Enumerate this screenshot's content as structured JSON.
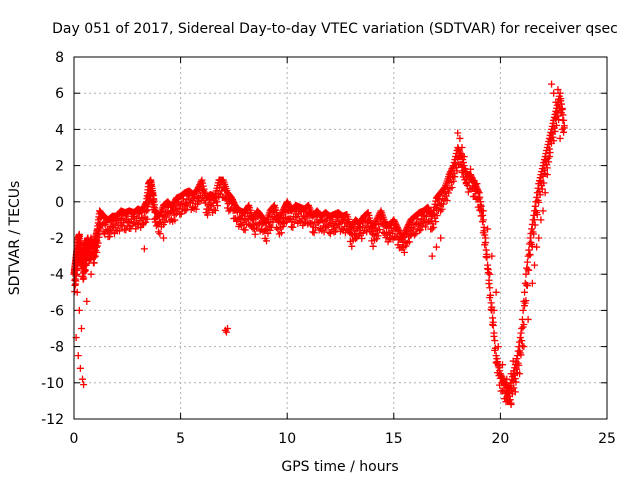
{
  "chart_data": {
    "type": "scatter",
    "title": "Day 051 of 2017, Sidereal Day-to-day VTEC variation (SDTVAR) for receiver qsec",
    "xlabel": "GPS time / hours",
    "ylabel": "SDTVAR / TECUs",
    "xlim": [
      0,
      25
    ],
    "ylim": [
      -12,
      8
    ],
    "xticks": [
      0,
      5,
      10,
      15,
      20,
      25
    ],
    "yticks": [
      -12,
      -10,
      -8,
      -6,
      -4,
      -2,
      0,
      2,
      4,
      6,
      8
    ],
    "xtick_labels": [
      "0",
      "5",
      "10",
      "15",
      "20",
      "25"
    ],
    "ytick_labels": [
      "-12",
      "-10",
      "-8",
      "-6",
      "-4",
      "-2",
      "0",
      "2",
      "4",
      "6",
      "8"
    ],
    "grid": true,
    "marker": "+",
    "series": [
      {
        "name": "SDTVAR",
        "color": "#ff0000",
        "x": [
          0.0,
          0.05,
          0.1,
          0.15,
          0.2,
          0.25,
          0.3,
          0.35,
          0.4,
          0.45,
          0.5,
          0.55,
          0.6,
          0.65,
          0.7,
          0.8,
          0.9,
          1.0,
          1.1,
          1.2,
          1.4,
          1.6,
          1.8,
          2.0,
          2.2,
          2.4,
          2.6,
          2.8,
          3.0,
          3.2,
          3.4,
          3.5,
          3.6,
          3.7,
          3.8,
          4.0,
          4.2,
          4.4,
          4.6,
          4.8,
          5.0,
          5.2,
          5.4,
          5.6,
          5.8,
          6.0,
          6.2,
          6.4,
          6.6,
          6.8,
          7.0,
          7.2,
          7.4,
          7.6,
          7.8,
          8.0,
          8.2,
          8.4,
          8.6,
          8.8,
          9.0,
          9.2,
          9.4,
          9.6,
          9.8,
          10.0,
          10.2,
          10.4,
          10.6,
          10.8,
          11.0,
          11.2,
          11.4,
          11.6,
          11.8,
          12.0,
          12.2,
          12.4,
          12.6,
          12.8,
          13.0,
          13.2,
          13.4,
          13.6,
          13.8,
          14.0,
          14.2,
          14.4,
          14.6,
          14.8,
          15.0,
          15.2,
          15.4,
          15.6,
          15.8,
          16.0,
          16.2,
          16.4,
          16.6,
          16.8,
          17.0,
          17.2,
          17.4,
          17.6,
          17.8,
          18.0,
          18.2,
          18.4,
          18.6,
          18.8,
          19.0,
          19.2,
          19.4,
          19.6,
          19.8,
          20.0,
          20.2,
          20.4,
          20.6,
          20.8,
          21.0,
          21.2,
          21.4,
          21.6,
          21.8,
          22.0,
          22.2,
          22.4,
          22.6,
          22.8,
          23.0
        ],
        "y": [
          -4.0,
          -3.5,
          -3.0,
          -2.5,
          -2.0,
          -1.8,
          -2.5,
          -3.0,
          -3.5,
          -3.0,
          -2.8,
          -2.5,
          -2.2,
          -2.0,
          -2.5,
          -2.0,
          -2.5,
          -2.0,
          -1.5,
          -0.5,
          -0.8,
          -1.0,
          -0.8,
          -0.8,
          -0.5,
          -0.6,
          -0.5,
          -0.6,
          -0.4,
          -0.5,
          0.0,
          1.0,
          1.2,
          0.5,
          -0.5,
          -0.8,
          -0.2,
          0.0,
          -0.3,
          0.2,
          0.3,
          0.5,
          0.6,
          0.4,
          0.7,
          1.2,
          0.2,
          0.4,
          0.3,
          1.2,
          1.2,
          0.5,
          0.2,
          -0.3,
          -0.5,
          -0.6,
          -0.2,
          -1.0,
          -0.5,
          -0.8,
          -1.2,
          -0.5,
          -0.2,
          -1.0,
          -0.5,
          0.0,
          -0.5,
          -0.2,
          -0.3,
          -0.4,
          -0.2,
          -0.8,
          -0.5,
          -0.8,
          -0.6,
          -0.8,
          -0.7,
          -0.6,
          -0.8,
          -0.7,
          -1.5,
          -1.0,
          -1.2,
          -0.8,
          -0.6,
          -1.5,
          -1.0,
          -0.5,
          -1.2,
          -1.3,
          -1.0,
          -1.5,
          -2.0,
          -1.5,
          -1.0,
          -0.8,
          -0.6,
          -0.5,
          -0.3,
          -0.8,
          0.2,
          0.5,
          0.8,
          1.5,
          2.0,
          3.0,
          2.5,
          1.5,
          1.5,
          1.0,
          0.5,
          -1.0,
          -3.5,
          -6.0,
          -8.5,
          -9.5,
          -10.0,
          -10.5,
          -9.5,
          -8.5,
          -7.0,
          -4.0,
          -2.0,
          -0.5,
          1.0,
          2.0,
          3.0,
          4.0,
          5.0,
          6.0,
          4.2
        ],
        "x_extra": [
          0.1,
          0.2,
          0.3,
          0.4,
          0.45,
          0.15,
          0.25,
          0.35,
          0.6,
          0.8,
          1.0,
          3.3,
          4.2,
          7.1,
          7.15,
          7.2,
          16.8,
          17.0,
          17.2,
          18.0,
          18.1,
          18.2,
          18.3,
          18.4,
          18.6,
          18.9,
          19.1,
          19.3,
          19.5,
          19.7,
          19.9,
          20.1,
          20.3,
          20.5,
          20.7,
          20.9,
          21.1,
          21.3,
          21.5,
          21.7,
          21.9,
          22.1,
          22.3,
          22.5,
          22.7,
          22.9,
          22.4,
          22.5,
          22.6,
          22.8,
          20.6,
          20.5,
          20.4,
          20.3,
          21.6,
          21.8,
          22.0,
          22.2,
          19.0,
          19.2,
          19.4,
          19.6,
          19.8
        ],
        "y_extra": [
          -7.5,
          -8.5,
          -9.2,
          -9.8,
          -10.1,
          -5.0,
          -6.0,
          -7.0,
          -5.5,
          -4.0,
          -3.0,
          -2.6,
          -2.0,
          -7.1,
          -7.2,
          -7.0,
          -3.0,
          -2.5,
          -2.0,
          3.8,
          3.5,
          3.0,
          2.5,
          1.0,
          1.8,
          1.0,
          -0.5,
          -2.0,
          -4.0,
          -6.0,
          -8.0,
          -9.0,
          -9.8,
          -11.2,
          -10.5,
          -9.5,
          -8.0,
          -6.5,
          -4.5,
          -2.5,
          -1.0,
          0.5,
          2.5,
          4.5,
          6.2,
          4.0,
          6.5,
          6.0,
          5.5,
          3.5,
          -8.8,
          -9.5,
          -10.2,
          -10.8,
          -3.5,
          -2.0,
          -0.5,
          1.5,
          0.5,
          -0.5,
          -1.5,
          -3.0,
          -5.0
        ]
      }
    ]
  }
}
